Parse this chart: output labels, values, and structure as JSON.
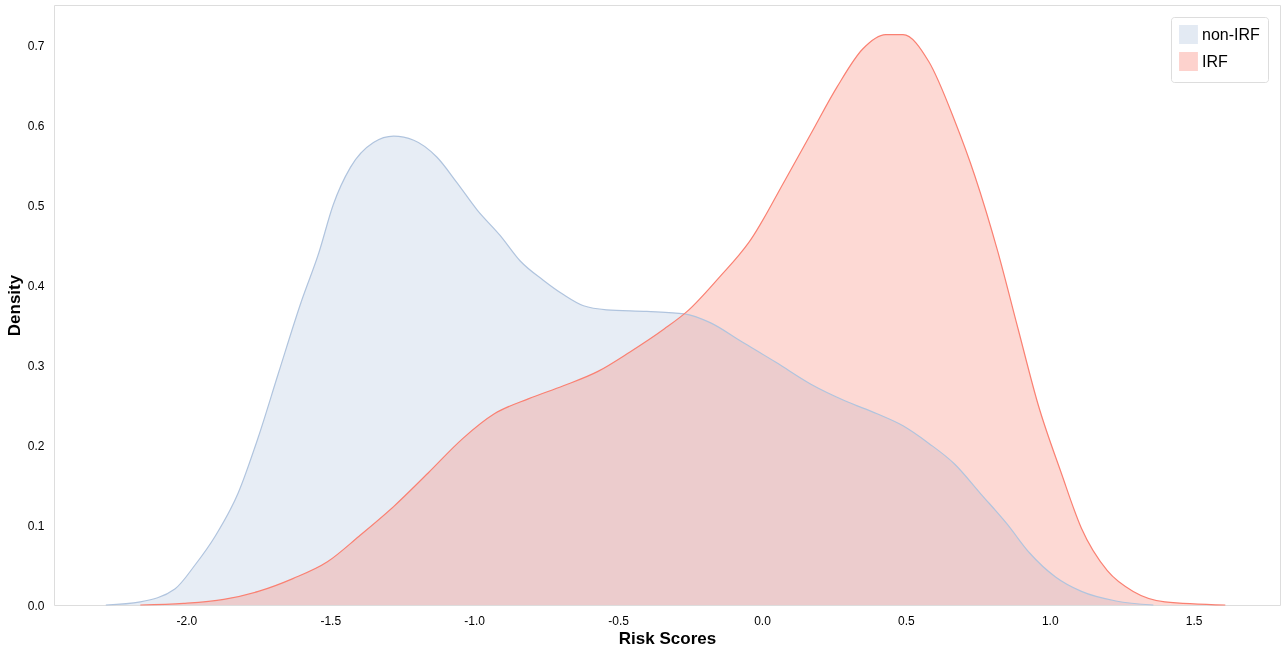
{
  "chart_data": {
    "type": "area",
    "xlabel": "Risk Scores",
    "ylabel": "Density",
    "xlim": [
      -2.46,
      1.8
    ],
    "ylim": [
      0,
      0.75
    ],
    "xticks": [
      {
        "value": -2,
        "label": "-2.0"
      },
      {
        "value": -1.5,
        "label": "-1.5"
      },
      {
        "value": -1,
        "label": "-1.0"
      },
      {
        "value": -0.5,
        "label": "-0.5"
      },
      {
        "value": 0,
        "label": "0.0"
      },
      0.5,
      {
        "value": 1,
        "label": "1.0"
      },
      1.5
    ],
    "yticks": [
      {
        "value": 0,
        "label": "0.0"
      },
      0.1,
      0.2,
      0.3,
      0.4,
      0.5,
      0.6,
      0.7
    ],
    "grid": false,
    "legend": "top right",
    "series": [
      {
        "name": "non-IRF",
        "color": "#b0c4de",
        "x": [
          -2.28,
          -2.16,
          -2.04,
          -1.97,
          -1.9,
          -1.82,
          -1.75,
          -1.68,
          -1.6,
          -1.54,
          -1.49,
          -1.43,
          -1.35,
          -1.28,
          -1.21,
          -1.13,
          -1.06,
          -0.99,
          -0.91,
          -0.84,
          -0.76,
          -0.69,
          -0.62,
          -0.54,
          -0.4,
          -0.27,
          -0.18,
          -0.07,
          0.05,
          0.17,
          0.29,
          0.4,
          0.49,
          0.58,
          0.67,
          0.76,
          0.85,
          0.93,
          1.02,
          1.11,
          1.23,
          1.36
        ],
        "values": [
          0.0,
          0.004,
          0.02,
          0.05,
          0.086,
          0.14,
          0.21,
          0.29,
          0.38,
          0.44,
          0.5,
          0.547,
          0.578,
          0.586,
          0.581,
          0.56,
          0.528,
          0.494,
          0.462,
          0.43,
          0.406,
          0.388,
          0.374,
          0.369,
          0.367,
          0.364,
          0.353,
          0.329,
          0.303,
          0.276,
          0.255,
          0.239,
          0.224,
          0.202,
          0.176,
          0.139,
          0.102,
          0.065,
          0.035,
          0.017,
          0.005,
          0.0
        ]
      },
      {
        "name": "IRF",
        "color": "#fa8072",
        "x": [
          -2.16,
          -2.01,
          -1.87,
          -1.75,
          -1.63,
          -1.51,
          -1.4,
          -1.28,
          -1.16,
          -1.04,
          -0.93,
          -0.81,
          -0.69,
          -0.57,
          -0.46,
          -0.34,
          -0.26,
          -0.15,
          -0.04,
          0.08,
          0.17,
          0.26,
          0.35,
          0.43,
          0.49,
          0.58,
          0.67,
          0.74,
          0.82,
          0.89,
          0.96,
          1.04,
          1.11,
          1.2,
          1.29,
          1.4,
          1.61
        ],
        "values": [
          0.0,
          0.002,
          0.007,
          0.017,
          0.033,
          0.054,
          0.086,
          0.123,
          0.165,
          0.208,
          0.239,
          0.258,
          0.274,
          0.292,
          0.316,
          0.345,
          0.367,
          0.409,
          0.456,
          0.531,
          0.589,
          0.647,
          0.695,
          0.713,
          0.713,
          0.679,
          0.605,
          0.536,
          0.441,
          0.345,
          0.25,
          0.165,
          0.096,
          0.043,
          0.017,
          0.004,
          0.0
        ]
      }
    ]
  }
}
